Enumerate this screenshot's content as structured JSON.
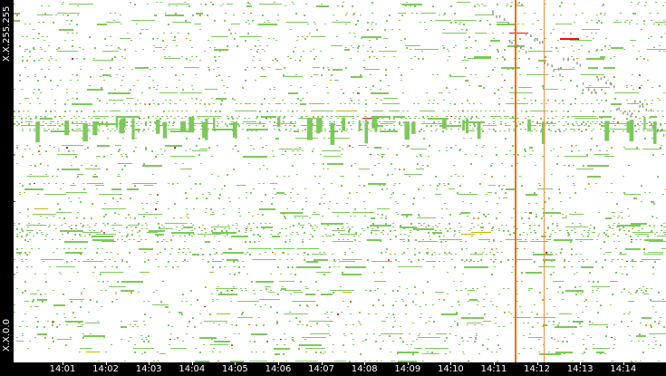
{
  "y_axis": {
    "top_label": "X.X.255.255",
    "bottom_label": "X.X.0.0"
  },
  "x_axis": {
    "ticks": [
      "14:01",
      "14:02",
      "14:03",
      "14:04",
      "14:05",
      "14:06",
      "14:07",
      "14:08",
      "14:09",
      "14:10",
      "14:11",
      "14:12",
      "14:13",
      "14:14"
    ]
  },
  "markers": [
    {
      "time": "14:11:30",
      "color": "#f26b00"
    },
    {
      "time": "14:12:10",
      "color": "#f08a3c"
    }
  ],
  "colors": {
    "low": "#7cc95a",
    "mid": "#c8b400",
    "high": "#f06000",
    "peak": "#e81010",
    "scan": "#999999",
    "background": "#ffffff"
  }
}
